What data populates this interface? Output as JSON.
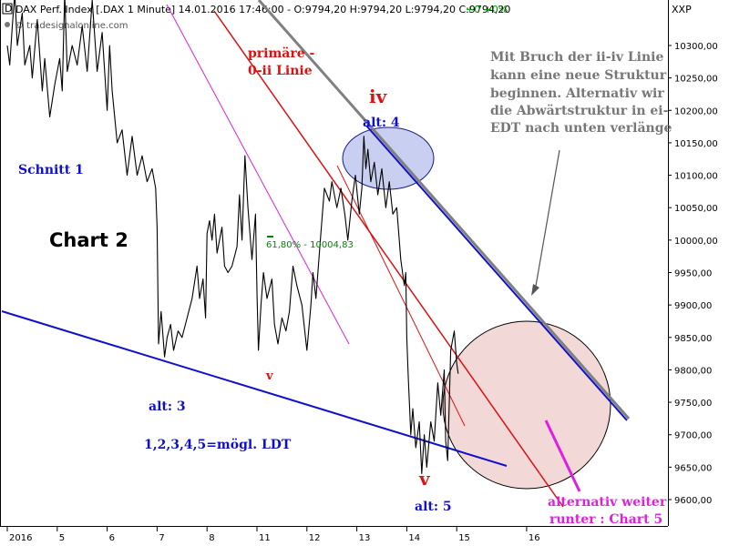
{
  "header": {
    "icon_text": "D",
    "title": "DAX Perf. Index [.DAX 1 Minute] 14.01.2016 17:46:00 - O:9794,20 H:9794,20 L:9794,20 C:9794,20",
    "change": "+0 +0%",
    "watermark": "© tradesignalonline.com",
    "currency": "XXP"
  },
  "colors": {
    "price": "#000000",
    "blue_line": "#1010cc",
    "red_line": "#e01010",
    "grey_line": "#808080",
    "magenta": "#e020e0",
    "fib_green": "#008800",
    "circle_fill": "#f3d8d8",
    "ellipse_fill": "#c8cff0"
  },
  "chart_data": {
    "type": "line",
    "title": "DAX Perf. Index [.DAX 1 Minute]",
    "ylim": [
      9580,
      10380
    ],
    "y_ticks": [
      9600,
      9650,
      9700,
      9750,
      9800,
      9850,
      9900,
      9950,
      10000,
      10050,
      10100,
      10150,
      10200,
      10250,
      10300
    ],
    "y_tick_labels": [
      "9600,00",
      "9650,00",
      "9700,00",
      "9750,00",
      "9800,00",
      "9850,00",
      "9900,00",
      "9950,00",
      "10000,00",
      "10050,00",
      "10100,00",
      "10150,00",
      "10200,00",
      "10250,00",
      "10300,00"
    ],
    "x_ticks": [
      {
        "label": "2016",
        "session": 0
      },
      {
        "label": "5",
        "session": 1
      },
      {
        "label": "6",
        "session": 2
      },
      {
        "label": "7",
        "session": 3
      },
      {
        "label": "8",
        "session": 4
      },
      {
        "label": "11",
        "session": 5
      },
      {
        "label": "12",
        "session": 6
      },
      {
        "label": "13",
        "session": 7
      },
      {
        "label": "14",
        "session": 8
      },
      {
        "label": "15",
        "session": 9
      },
      {
        "label": "16",
        "session": 10.4
      }
    ],
    "xlim": [
      -0.05,
      10.8
    ],
    "grid": false,
    "series": [
      {
        "price": [
          [
            0.0,
            10300
          ],
          [
            0.05,
            10270
          ],
          [
            0.1,
            10330
          ],
          [
            0.15,
            10380
          ],
          [
            0.2,
            10300
          ],
          [
            0.3,
            10350
          ],
          [
            0.35,
            10270
          ],
          [
            0.45,
            10300
          ],
          [
            0.5,
            10250
          ],
          [
            0.6,
            10340
          ],
          [
            0.7,
            10230
          ],
          [
            0.75,
            10280
          ],
          [
            0.85,
            10190
          ],
          [
            0.95,
            10240
          ],
          [
            1.05,
            10280
          ],
          [
            1.1,
            10230
          ],
          [
            1.15,
            10380
          ],
          [
            1.2,
            10260
          ],
          [
            1.3,
            10300
          ],
          [
            1.4,
            10270
          ],
          [
            1.5,
            10330
          ],
          [
            1.6,
            10260
          ],
          [
            1.7,
            10370
          ],
          [
            1.8,
            10260
          ],
          [
            1.9,
            10320
          ],
          [
            2.0,
            10200
          ],
          [
            2.05,
            10300
          ],
          [
            2.1,
            10230
          ],
          [
            2.2,
            10150
          ],
          [
            2.3,
            10170
          ],
          [
            2.4,
            10100
          ],
          [
            2.5,
            10160
          ],
          [
            2.6,
            10100
          ],
          [
            2.7,
            10130
          ],
          [
            2.8,
            10090
          ],
          [
            2.9,
            10110
          ],
          [
            2.97,
            10080
          ],
          [
            3.0,
            10020
          ],
          [
            3.03,
            9840
          ],
          [
            3.08,
            9890
          ],
          [
            3.15,
            9820
          ],
          [
            3.2,
            9850
          ],
          [
            3.27,
            9870
          ],
          [
            3.33,
            9830
          ],
          [
            3.42,
            9860
          ],
          [
            3.5,
            9850
          ],
          [
            3.6,
            9880
          ],
          [
            3.7,
            9910
          ],
          [
            3.8,
            9960
          ],
          [
            3.85,
            9910
          ],
          [
            3.92,
            9940
          ],
          [
            3.97,
            9880
          ],
          [
            4.0,
            10010
          ],
          [
            4.05,
            10030
          ],
          [
            4.1,
            10000
          ],
          [
            4.15,
            10040
          ],
          [
            4.2,
            9980
          ],
          [
            4.3,
            10020
          ],
          [
            4.35,
            9960
          ],
          [
            4.42,
            9950
          ],
          [
            4.5,
            9960
          ],
          [
            4.6,
            9990
          ],
          [
            4.65,
            10070
          ],
          [
            4.7,
            10000
          ],
          [
            4.76,
            10130
          ],
          [
            4.82,
            10050
          ],
          [
            4.9,
            9970
          ],
          [
            4.97,
            10040
          ],
          [
            5.0,
            9920
          ],
          [
            5.03,
            9830
          ],
          [
            5.08,
            9900
          ],
          [
            5.13,
            9950
          ],
          [
            5.2,
            9910
          ],
          [
            5.3,
            9940
          ],
          [
            5.35,
            9870
          ],
          [
            5.42,
            9840
          ],
          [
            5.5,
            9880
          ],
          [
            5.58,
            9860
          ],
          [
            5.65,
            9890
          ],
          [
            5.72,
            9960
          ],
          [
            5.8,
            9930
          ],
          [
            5.9,
            9900
          ],
          [
            6.0,
            9830
          ],
          [
            6.08,
            9900
          ],
          [
            6.12,
            9950
          ],
          [
            6.18,
            9910
          ],
          [
            6.28,
            10010
          ],
          [
            6.35,
            10080
          ],
          [
            6.45,
            10060
          ],
          [
            6.5,
            10090
          ],
          [
            6.6,
            10050
          ],
          [
            6.68,
            10080
          ],
          [
            6.76,
            10040
          ],
          [
            6.82,
            10000
          ],
          [
            6.9,
            10060
          ],
          [
            6.97,
            10100
          ],
          [
            7.05,
            10040
          ],
          [
            7.1,
            10080
          ],
          [
            7.14,
            10160
          ],
          [
            7.18,
            10110
          ],
          [
            7.22,
            10140
          ],
          [
            7.28,
            10090
          ],
          [
            7.35,
            10120
          ],
          [
            7.42,
            10070
          ],
          [
            7.5,
            10110
          ],
          [
            7.58,
            10050
          ],
          [
            7.65,
            10090
          ],
          [
            7.72,
            10040
          ],
          [
            7.8,
            10050
          ],
          [
            7.88,
            9970
          ],
          [
            7.95,
            9930
          ],
          [
            7.98,
            9950
          ],
          [
            8.0,
            9850
          ],
          [
            8.03,
            9790
          ],
          [
            8.08,
            9700
          ],
          [
            8.12,
            9740
          ],
          [
            8.18,
            9680
          ],
          [
            8.25,
            9720
          ],
          [
            8.3,
            9640
          ],
          [
            8.35,
            9700
          ],
          [
            8.4,
            9650
          ],
          [
            8.48,
            9720
          ],
          [
            8.55,
            9690
          ],
          [
            8.62,
            9780
          ],
          [
            8.68,
            9730
          ],
          [
            8.75,
            9800
          ],
          [
            8.78,
            9690
          ],
          [
            8.82,
            9660
          ],
          [
            8.88,
            9830
          ],
          [
            8.95,
            9860
          ],
          [
            9.0,
            9810
          ],
          [
            9.03,
            9794
          ]
        ]
      }
    ],
    "levels": [
      {
        "label": "61,80% - 10004,83",
        "value": 10004.83
      }
    ],
    "annotations": {
      "schnitt": "Schnitt 1",
      "chart2": "Chart 2",
      "primaere": "primäre -",
      "zero_ii": "0-ii Linie",
      "iv": "iv",
      "alt4": "alt: 4",
      "v_small": "v",
      "alt3": "alt: 3",
      "ldt": "1,2,3,4,5=mögl. LDT",
      "v_big": "v",
      "alt5": "alt: 5",
      "note": [
        "Mit Bruch der ii-iv Linie",
        "kann eine neue Struktur",
        "beginnen. Alternativ wir",
        "die Abwärtstruktur in ei-",
        "EDT nach unten verlänge"
      ],
      "alternativ": "alternativ weiter",
      "runter": "runter : Chart 5"
    }
  }
}
